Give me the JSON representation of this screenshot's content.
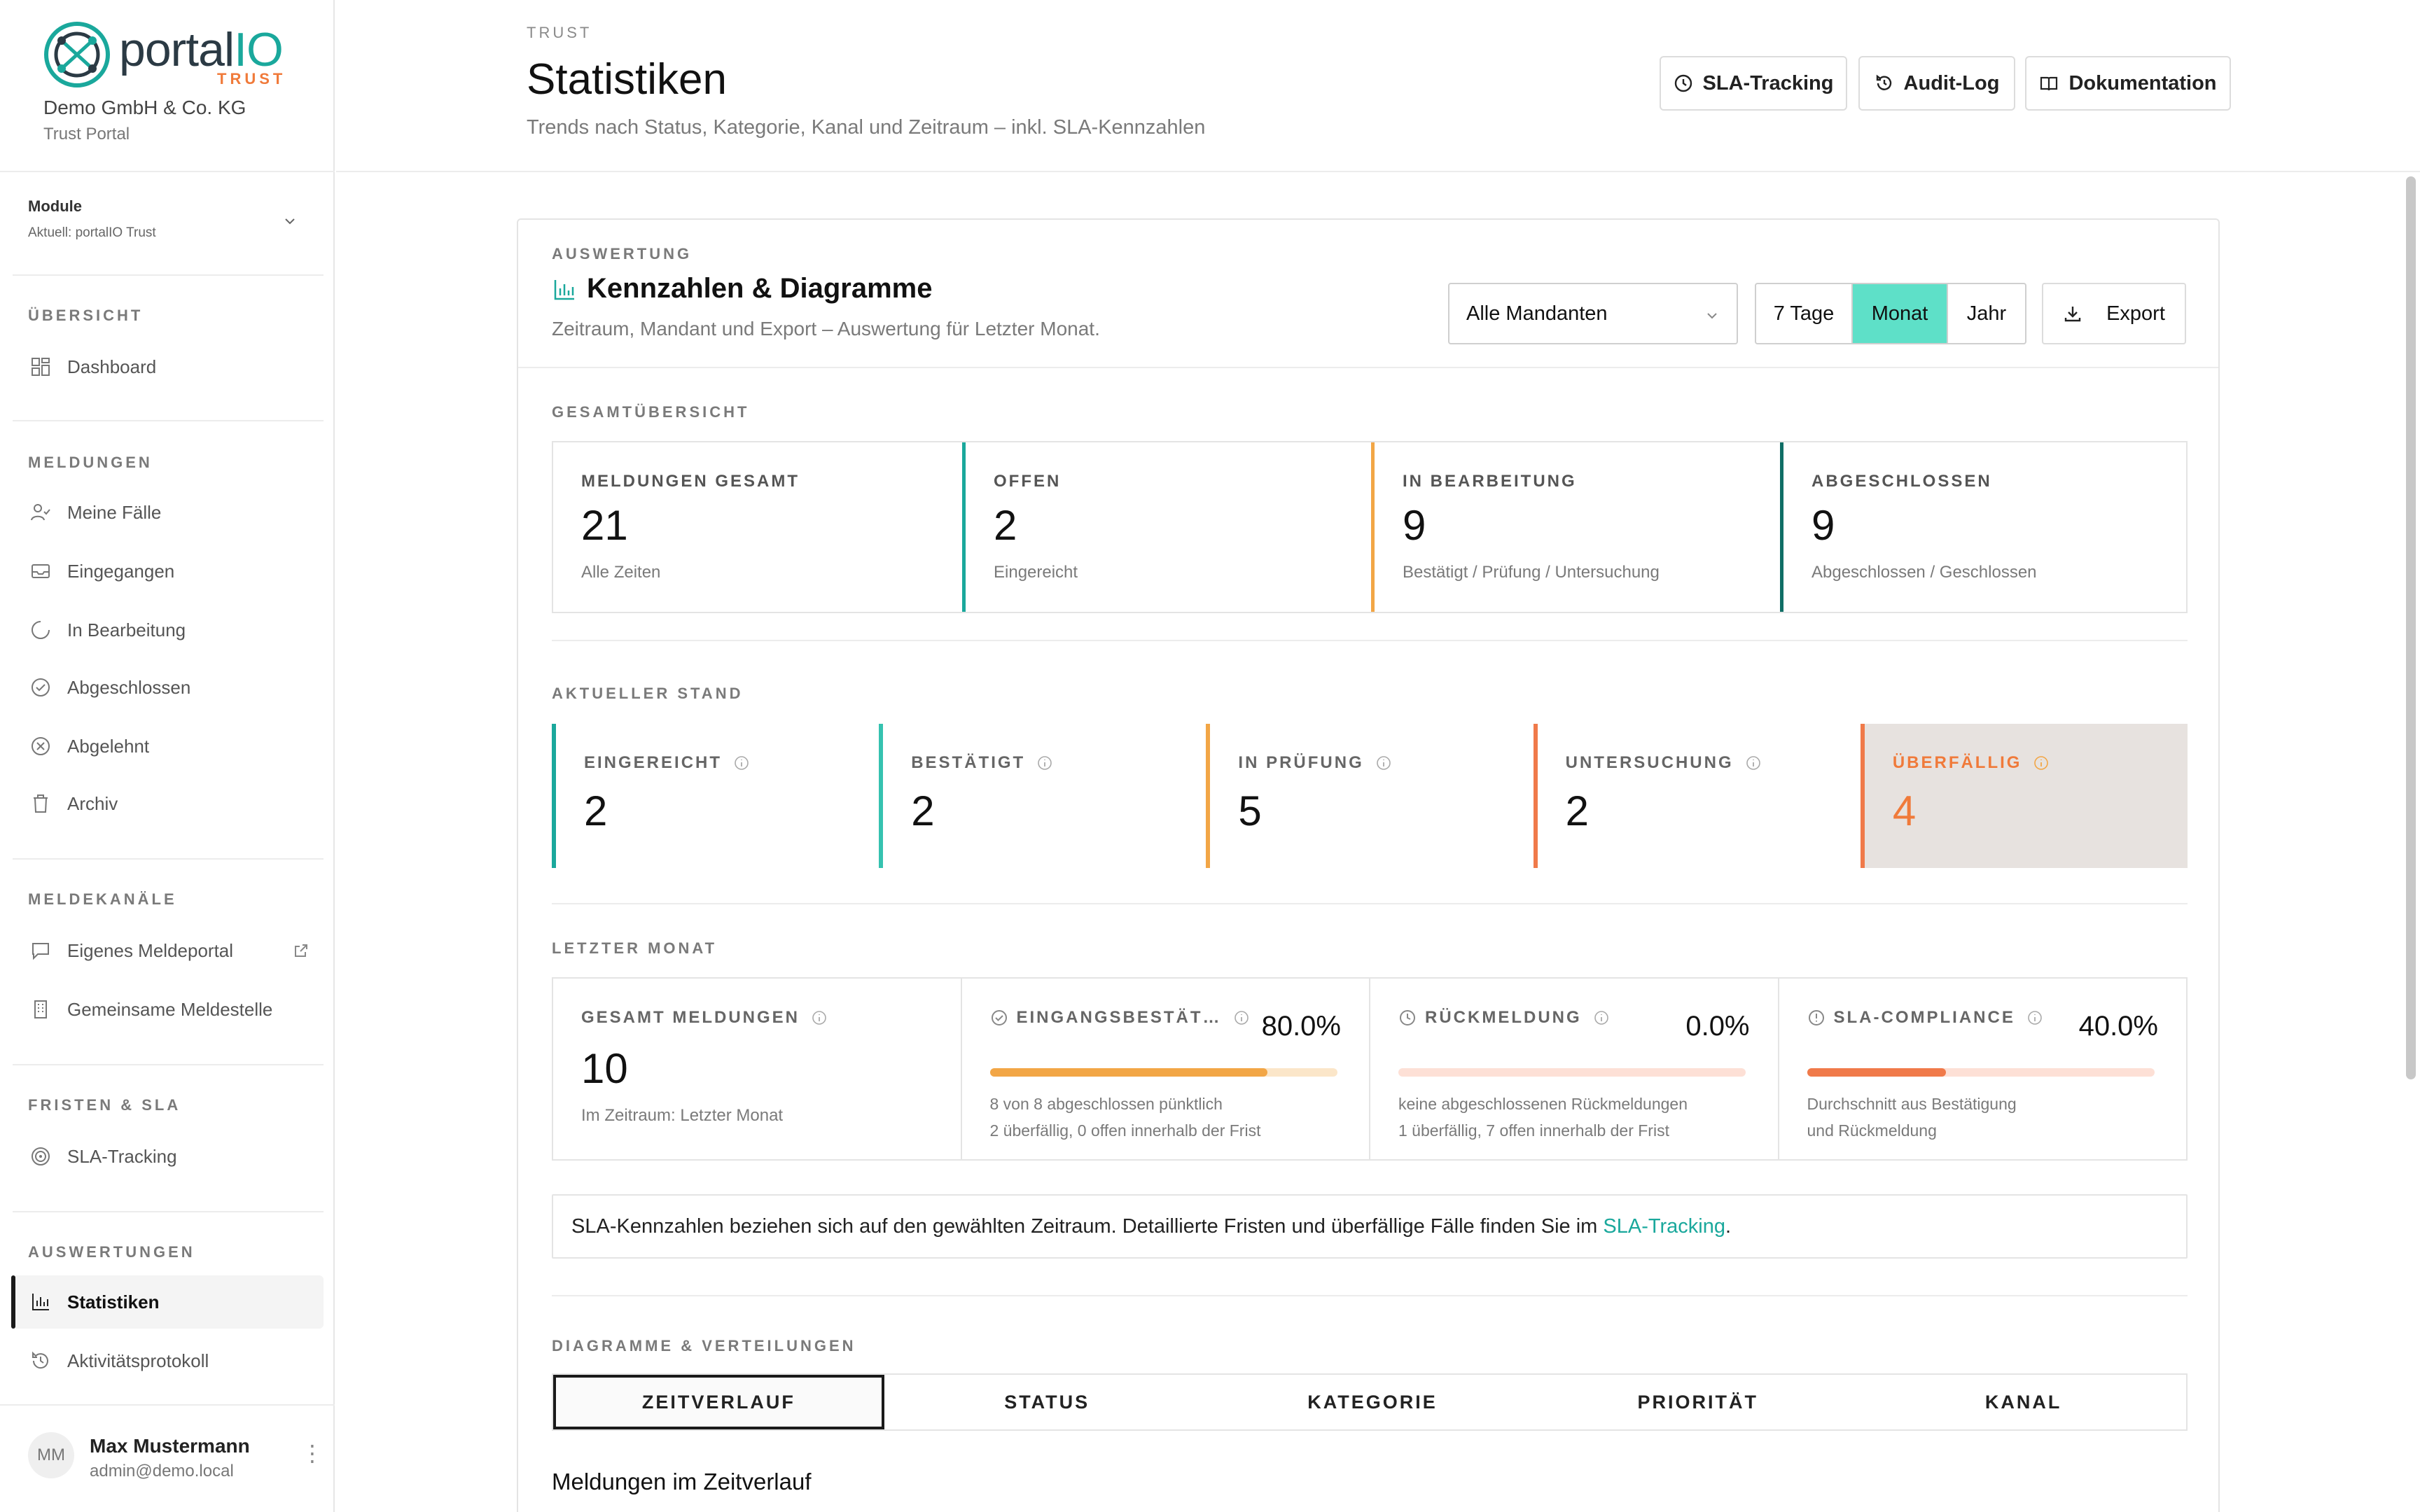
{
  "brand": {
    "name_a": "portal",
    "name_b": "IO",
    "sub": "TRUST"
  },
  "company": "Demo GmbH & Co. KG",
  "portal_sub": "Trust Portal",
  "module": {
    "label": "Module",
    "current": "Aktuell: portalIO Trust"
  },
  "nav": {
    "overview_title": "ÜBERSICHT",
    "overview": [
      "Dashboard"
    ],
    "reports_title": "MELDUNGEN",
    "reports": [
      "Meine Fälle",
      "Eingegangen",
      "In Bearbeitung",
      "Abgeschlossen",
      "Abgelehnt",
      "Archiv"
    ],
    "channels_title": "MELDEKANÄLE",
    "channels": [
      "Eigenes Meldeportal",
      "Gemeinsame Meldestelle"
    ],
    "sla_title": "FRISTEN & SLA",
    "sla": [
      "SLA-Tracking"
    ],
    "eval_title": "AUSWERTUNGEN",
    "eval": [
      "Statistiken",
      "Aktivitätsprotokoll"
    ]
  },
  "user": {
    "initials": "MM",
    "name": "Max Mustermann",
    "email": "admin@demo.local"
  },
  "header": {
    "eyebrow": "TRUST",
    "title": "Statistiken",
    "subtitle": "Trends nach Status, Kategorie, Kanal und Zeitraum – inkl. SLA-Kennzahlen",
    "buttons": [
      "SLA-Tracking",
      "Audit-Log",
      "Dokumentation"
    ]
  },
  "card": {
    "eyebrow": "AUSWERTUNG",
    "title": "Kennzahlen & Diagramme",
    "subtitle": "Zeitraum, Mandant und Export – Auswertung für Letzter Monat.",
    "tenant_select": "Alle Mandanten",
    "periods": [
      "7 Tage",
      "Monat",
      "Jahr"
    ],
    "active_period": "Monat",
    "export": "Export"
  },
  "overview": {
    "label": "GESAMTÜBERSICHT",
    "tiles": [
      {
        "label": "MELDUNGEN GESAMT",
        "value": "21",
        "note": "Alle Zeiten"
      },
      {
        "label": "OFFEN",
        "value": "2",
        "note": "Eingereicht"
      },
      {
        "label": "IN BEARBEITUNG",
        "value": "9",
        "note": "Bestätigt / Prüfung / Untersuchung"
      },
      {
        "label": "ABGESCHLOSSEN",
        "value": "9",
        "note": "Abgeschlossen / Geschlossen"
      }
    ]
  },
  "current": {
    "label": "AKTUELLER STAND",
    "tiles": [
      {
        "label": "EINGEREICHT",
        "value": "2"
      },
      {
        "label": "BESTÄTIGT",
        "value": "2"
      },
      {
        "label": "IN PRÜFUNG",
        "value": "5"
      },
      {
        "label": "UNTERSUCHUNG",
        "value": "2"
      },
      {
        "label": "ÜBERFÄLLIG",
        "value": "4"
      }
    ]
  },
  "last_month": {
    "label": "LETZTER MONAT",
    "total": {
      "label": "GESAMT MELDUNGEN",
      "value": "10",
      "note": "Im Zeitraum: Letzter Monat"
    },
    "metrics": [
      {
        "label": "EINGANGSBESTÄT…",
        "pct": "80.0%",
        "fill": 0.8,
        "color": "#f2a646",
        "track": "#fbe6c9",
        "line1": "8 von 8 abgeschlossen pünktlich",
        "line2": "2 überfällig, 0 offen innerhalb der Frist"
      },
      {
        "label": "RÜCKMELDUNG",
        "pct": "0.0%",
        "fill": 0.0,
        "color": "#f07a4a",
        "track": "#fde0d6",
        "line1": "keine abgeschlossenen Rückmeldungen",
        "line2": "1 überfällig, 7 offen innerhalb der Frist"
      },
      {
        "label": "SLA-COMPLIANCE",
        "pct": "40.0%",
        "fill": 0.4,
        "color": "#f07a4a",
        "track": "#fde0d6",
        "line1": "Durchschnitt aus Bestätigung",
        "line2": "und Rückmeldung"
      }
    ]
  },
  "info": {
    "text": "SLA-Kennzahlen beziehen sich auf den gewählten Zeitraum. Detaillierte Fristen und überfällige Fälle finden Sie im ",
    "link": "SLA-Tracking",
    "end": "."
  },
  "charts": {
    "label": "DIAGRAMME & VERTEILUNGEN",
    "tabs": [
      "ZEITVERLAUF",
      "STATUS",
      "KATEGORIE",
      "PRIORITÄT",
      "KANAL"
    ],
    "chart_title": "Meldungen im Zeitverlauf"
  },
  "colors": {
    "accent": "#1aa89c",
    "active_period": "#5ee0c8",
    "warn": "#f07a3a"
  }
}
